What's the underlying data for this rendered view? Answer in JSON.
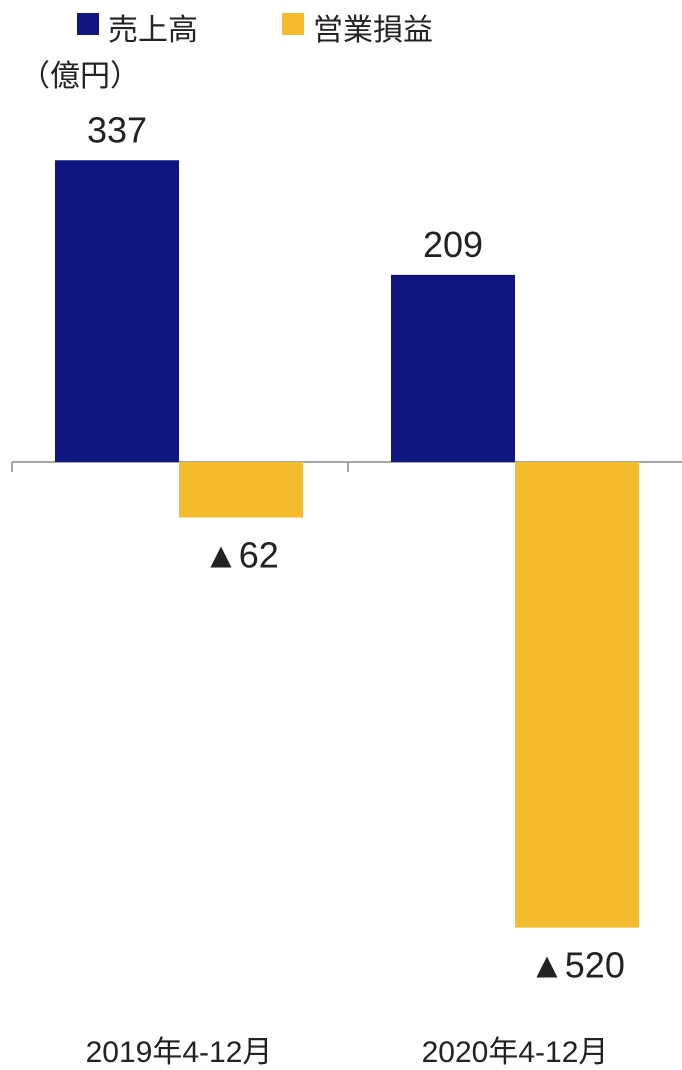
{
  "chart_data": {
    "type": "bar",
    "unit_label": "（億円）",
    "categories": [
      "2019年4-12月",
      "2020年4-12月"
    ],
    "series": [
      {
        "name": "売上高",
        "color": "#0f1680",
        "values": [
          337,
          209
        ],
        "labels": [
          "337",
          "209"
        ]
      },
      {
        "name": "営業損益",
        "color": "#f4bb2c",
        "values": [
          -62,
          -520
        ],
        "labels": [
          "▲62",
          "▲520"
        ]
      }
    ],
    "ylim": [
      -520,
      337
    ],
    "grid": false,
    "legend_position": "top-left"
  }
}
